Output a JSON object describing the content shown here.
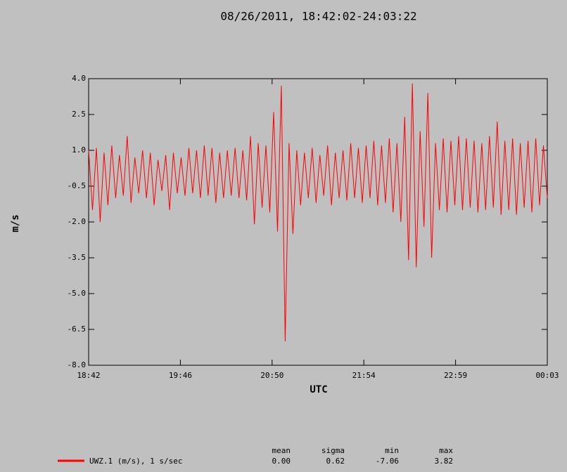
{
  "chart_data": {
    "type": "line",
    "title": "08/26/2011, 18:42:02-24:03:22",
    "x_label": "UTC",
    "y_label": "m/s",
    "xticks": [
      "18:42",
      "19:46",
      "20:50",
      "21:54",
      "22:59",
      "00:03"
    ],
    "ylim": [
      -8,
      4
    ],
    "yticks": [
      {
        "value": 4,
        "label": "4.0"
      },
      {
        "value": 2.5,
        "label": "2.5"
      },
      {
        "value": 1,
        "label": "1.0"
      },
      {
        "value": -0.5,
        "label": "-0.5"
      },
      {
        "value": -2,
        "label": "-2.0"
      },
      {
        "value": -3.5,
        "label": "-3.5"
      },
      {
        "value": -5,
        "label": "-5.0"
      },
      {
        "value": -6.5,
        "label": "-6.5"
      },
      {
        "value": -8,
        "label": "-8.0"
      }
    ],
    "series": [
      {
        "name": "UWZ.1 (m/s), 1 s/sec",
        "color": "#ff0000",
        "values": [
          1.0,
          -1.5,
          1.1,
          -2.0,
          0.9,
          -1.3,
          1.2,
          -1.0,
          0.8,
          -0.9,
          1.6,
          -1.2,
          0.7,
          -0.8,
          1.0,
          -1.0,
          0.9,
          -1.3,
          0.6,
          -0.7,
          0.8,
          -1.5,
          0.9,
          -0.8,
          0.7,
          -0.9,
          1.1,
          -0.8,
          1.0,
          -1.0,
          1.2,
          -0.9,
          1.1,
          -1.2,
          0.9,
          -1.0,
          1.0,
          -0.9,
          1.1,
          -1.0,
          1.0,
          -1.1,
          1.6,
          -2.1,
          1.3,
          -1.4,
          1.2,
          -1.6,
          2.6,
          -2.4,
          3.7,
          -7.0,
          1.3,
          -2.5,
          1.0,
          -1.3,
          0.9,
          -1.0,
          1.1,
          -1.2,
          0.8,
          -0.9,
          1.2,
          -1.3,
          0.9,
          -1.0,
          1.0,
          -1.1,
          1.3,
          -1.0,
          1.1,
          -1.2,
          1.2,
          -1.0,
          1.4,
          -1.3,
          1.2,
          -1.2,
          1.5,
          -1.6,
          1.3,
          -2.0,
          2.4,
          -3.6,
          3.8,
          -3.9,
          1.8,
          -2.2,
          3.4,
          -3.5,
          1.3,
          -1.5,
          1.5,
          -1.6,
          1.4,
          -1.3,
          1.6,
          -1.5,
          1.5,
          -1.4,
          1.4,
          -1.6,
          1.3,
          -1.5,
          1.6,
          -1.4,
          2.2,
          -1.7,
          1.4,
          -1.5,
          1.5,
          -1.7,
          1.3,
          -1.4,
          1.4,
          -1.6,
          1.5,
          -1.3,
          1.2,
          -1.0
        ]
      }
    ],
    "stats": {
      "headers": [
        "mean",
        "sigma",
        "min",
        "max"
      ],
      "values": [
        "0.00",
        "0.62",
        "-7.06",
        "3.82"
      ]
    }
  }
}
